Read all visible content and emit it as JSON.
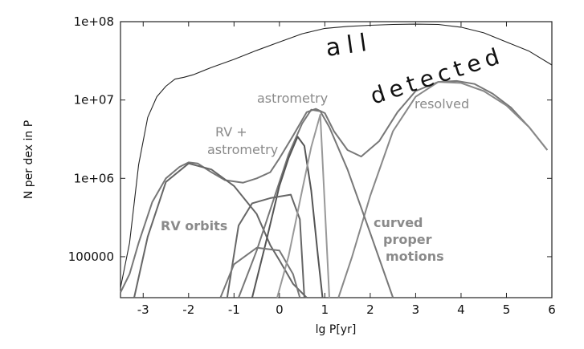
{
  "chart_data": {
    "type": "line",
    "xlabel": "lg P[yr]",
    "ylabel": "N per dex in P",
    "xlim": [
      -3.5,
      6
    ],
    "ylim": [
      30000,
      100000000
    ],
    "y_scale": "log",
    "x_ticks": [
      -3,
      -2,
      -1,
      0,
      1,
      2,
      3,
      4,
      5,
      6
    ],
    "x_tick_labels": [
      "-3",
      "-2",
      "-1",
      "0",
      "1",
      "2",
      "3",
      "4",
      "5",
      "6"
    ],
    "y_ticks": [
      100000,
      1000000,
      10000000,
      100000000
    ],
    "y_tick_labels": [
      "100000",
      "1e+06",
      "1e+07",
      "1e+08"
    ],
    "grid": false,
    "annotations": {
      "all": "all",
      "detected": "detected",
      "resolved": "resolved",
      "astrometry": "astrometry",
      "rv_astrometry_1": "RV +",
      "rv_astrometry_2": "astrometry",
      "rv_orbits": "RV orbits",
      "curved_1": "curved",
      "curved_2": "proper",
      "curved_3": "motions"
    },
    "series": [
      {
        "color": "#222222",
        "x": [
          -3.5,
          -3.3,
          -3.1,
          -2.9,
          -2.7,
          -2.5,
          -2.3,
          -2.1,
          -1.9,
          -1.5,
          -1.0,
          -0.5,
          0,
          0.5,
          1,
          1.5,
          2,
          2.5,
          3,
          3.5,
          4,
          4.5,
          5,
          5.5,
          6
        ],
        "values": [
          40000,
          150000,
          1500000,
          6000000,
          11000000,
          15000000,
          18500000,
          19500000,
          21000000,
          26000000,
          33000000,
          43000000,
          55000000,
          70000000,
          82000000,
          87000000,
          90000000,
          92000000,
          93000000,
          92000000,
          85000000,
          72000000,
          55000000,
          42000000,
          28000000
        ]
      },
      {
        "color": "#777777",
        "x": [
          -3.5,
          -3.3,
          -3.1,
          -2.8,
          -2.5,
          -2.2,
          -2.0,
          -1.8,
          -1.5,
          -1.2,
          -0.8,
          -0.5,
          -0.2,
          0,
          0.3,
          0.6,
          0.8,
          1.0,
          1.2,
          1.5,
          1.8,
          2.2,
          2.6,
          3.0,
          3.5,
          3.9,
          4.3,
          4.7,
          5.1,
          5.5,
          5.9
        ],
        "values": [
          35000,
          60000,
          150000,
          500000,
          1000000,
          1400000,
          1600000,
          1550000,
          1200000,
          950000,
          880000,
          1000000,
          1200000,
          1800000,
          3500000,
          7000000,
          7700000,
          6800000,
          4000000,
          2300000,
          1900000,
          3000000,
          7000000,
          13000000,
          17000000,
          17500000,
          16000000,
          12000000,
          8000000,
          4500000,
          2300000
        ]
      },
      {
        "color": "#888888",
        "x": [
          1.3,
          1.6,
          2.0,
          2.5,
          3.0,
          3.5,
          4.0,
          4.5,
          5.0,
          5.5,
          5.9
        ],
        "values": [
          30000,
          100000,
          600000,
          4000000,
          11000000,
          17000000,
          16500000,
          13000000,
          8500000,
          4500000,
          2300000
        ]
      },
      {
        "color": "#666666",
        "x": [
          -3.2,
          -2.9,
          -2.5,
          -2.0,
          -1.5,
          -1.0,
          -0.5,
          -0.2,
          0.0,
          0.3,
          0.6
        ],
        "values": [
          30000,
          180000,
          900000,
          1550000,
          1300000,
          800000,
          350000,
          140000,
          90000,
          45000,
          30000
        ]
      },
      {
        "color": "#777777",
        "x": [
          -0.9,
          -0.5,
          -0.1,
          0.2,
          0.5,
          0.7,
          0.9,
          1.1,
          1.5,
          2.0,
          2.5
        ],
        "values": [
          30000,
          120000,
          600000,
          2000000,
          5000000,
          7500000,
          7200000,
          4500000,
          1300000,
          200000,
          30000
        ]
      },
      {
        "color": "#555555",
        "x": [
          -0.6,
          -0.3,
          0.0,
          0.2,
          0.4,
          0.55,
          0.7,
          0.85,
          0.95
        ],
        "values": [
          30000,
          150000,
          800000,
          1800000,
          3400000,
          2600000,
          700000,
          100000,
          30000
        ]
      },
      {
        "color": "#666666",
        "x": [
          -1.15,
          -0.9,
          -0.6,
          -0.2,
          0.25,
          0.45,
          0.55
        ],
        "values": [
          30000,
          250000,
          480000,
          560000,
          620000,
          300000,
          30000
        ]
      },
      {
        "color": "#777777",
        "x": [
          -1.3,
          -1.0,
          -0.5,
          0.0,
          0.3,
          0.45
        ],
        "values": [
          30000,
          80000,
          130000,
          120000,
          60000,
          30000
        ]
      },
      {
        "color": "#999999",
        "x": [
          -0.05,
          0.2,
          0.5,
          0.7,
          0.9,
          1.1
        ],
        "values": [
          30000,
          100000,
          700000,
          2500000,
          6500000,
          30000
        ]
      }
    ]
  }
}
